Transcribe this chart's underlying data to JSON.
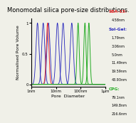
{
  "title": "Monomodal silica pore-size distributions.",
  "xlabel": "Pore  Diameter",
  "ylabel": "Normalised Pore Volume",
  "xmin": 1e-09,
  "xmax": 1e-06,
  "legend_sba15_label": "SBA-15:",
  "legend_sba15_color": "#ee3333",
  "legend_solgel_label": "Sol-Gel:",
  "legend_solgel_color": "#2222bb",
  "legend_cpg_label": "CPG:",
  "legend_cpg_color": "#22aa22",
  "sba15_peaks_nm": [
    4.58
  ],
  "sba15_sigma": 0.12,
  "solgel_peaks_nm": [
    1.79,
    3.06,
    5.0,
    11.49,
    19.59,
    43.93
  ],
  "solgel_sigma": 0.14,
  "cpg_peaks_nm": [
    79.1,
    149.8,
    216.6
  ],
  "cpg_sigma": 0.1,
  "background_color": "#f0f0e8",
  "title_fontsize": 6.0,
  "axis_label_fontsize": 4.5,
  "tick_fontsize": 4.0,
  "legend_header_fontsize": 4.2,
  "legend_val_fontsize": 3.5
}
